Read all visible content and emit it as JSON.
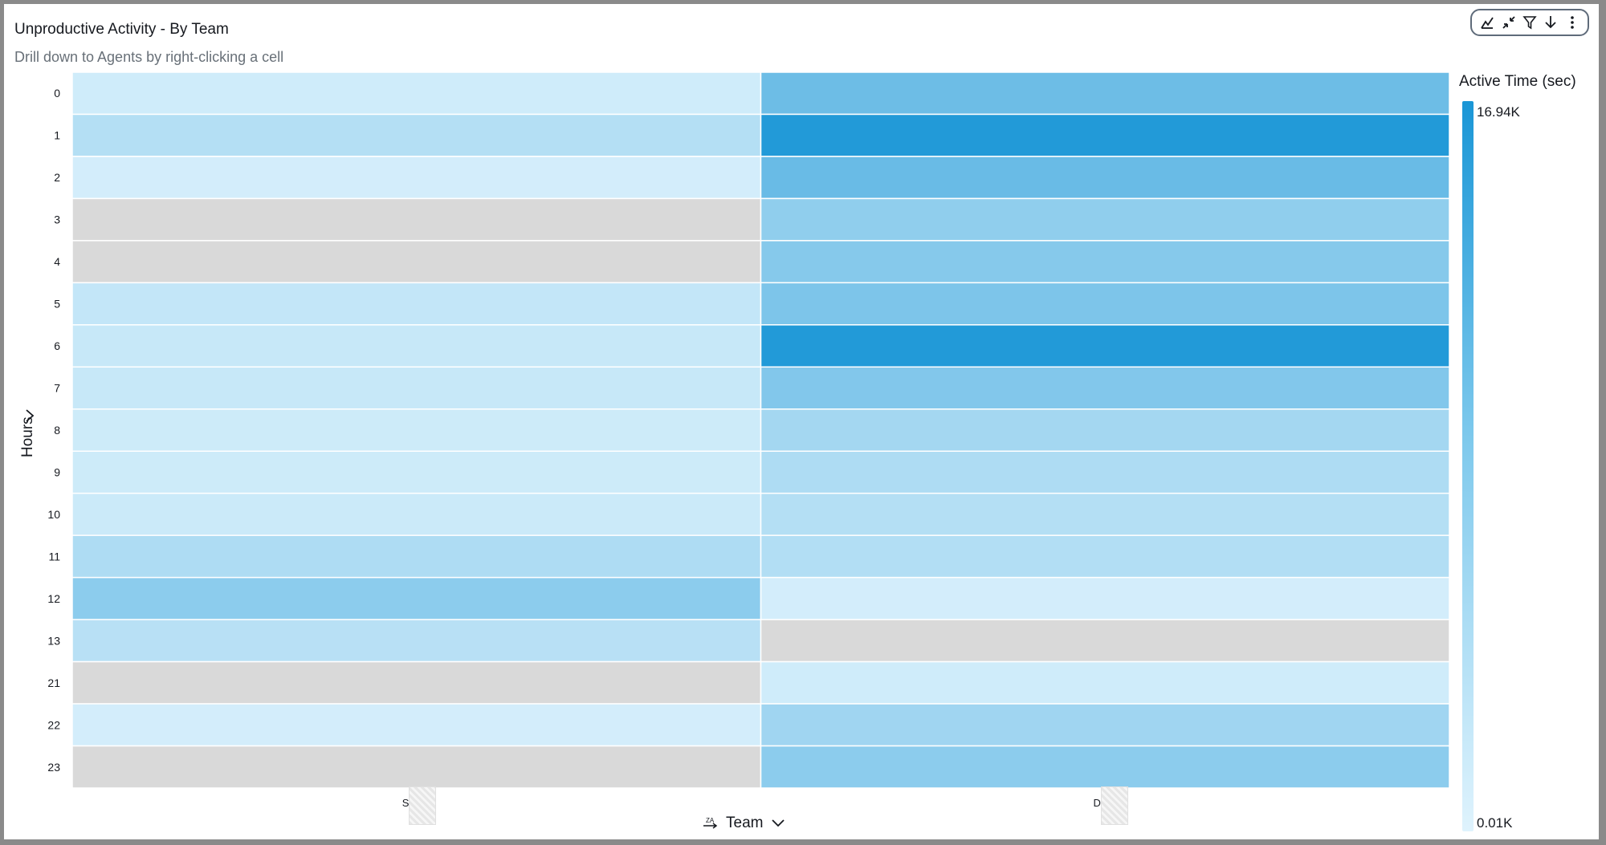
{
  "title": "Unproductive Activity - By Team",
  "subtitle": "Drill down to Agents by right-clicking a cell",
  "toolbar": {
    "icons": [
      "chart-type-icon",
      "collapse-icon",
      "filter-icon",
      "download-icon",
      "more-options-icon"
    ]
  },
  "legend": {
    "title": "Active Time (sec)",
    "max_label": "16.94K",
    "min_label": "0.01K",
    "color_high": "#1a96d6",
    "color_low": "#dff3fd",
    "color_null": "#d9d9d9"
  },
  "x_axis_control": {
    "label": "Team"
  },
  "y_axis_control": {
    "label": "Hours"
  },
  "chart_data": {
    "type": "heatmap",
    "ylabel": "Hours",
    "xlabel": "Team",
    "columns": [
      "Su",
      "D"
    ],
    "rows": [
      "0",
      "1",
      "2",
      "3",
      "4",
      "5",
      "6",
      "7",
      "8",
      "9",
      "10",
      "11",
      "12",
      "13",
      "21",
      "22",
      "23"
    ],
    "values": [
      [
        0.08,
        0.58
      ],
      [
        0.22,
        0.96
      ],
      [
        0.06,
        0.6
      ],
      [
        null,
        0.4
      ],
      [
        null,
        0.45
      ],
      [
        0.14,
        0.5
      ],
      [
        0.12,
        0.96
      ],
      [
        0.12,
        0.47
      ],
      [
        0.09,
        0.3
      ],
      [
        0.09,
        0.25
      ],
      [
        0.1,
        0.22
      ],
      [
        0.25,
        0.23
      ],
      [
        0.42,
        0.06
      ],
      [
        0.2,
        null
      ],
      [
        null,
        0.08
      ],
      [
        0.06,
        0.32
      ],
      [
        null,
        0.42
      ]
    ],
    "value_range": [
      0.01,
      16.94
    ],
    "value_unit": "K",
    "value_scale_note": "values above are fractions of the legend range"
  }
}
